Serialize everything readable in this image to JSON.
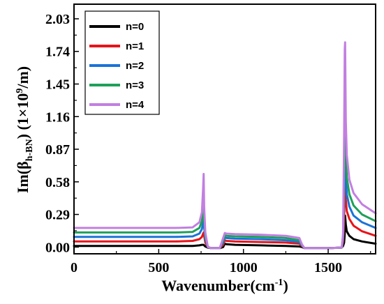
{
  "chart_data": {
    "type": "line",
    "xlabel": "Wavenumber(cm",
    "xlabel_sup": "-1",
    "xlabel_end": ")",
    "ylabel": {
      "prefix": "Im(β",
      "sub": "h-BN",
      "middle": ") (1×10",
      "sup": "9",
      "suffix": "/m)"
    },
    "xlim": [
      0,
      1780
    ],
    "ylim": [
      -0.06,
      2.16
    ],
    "x_ticks": [
      0,
      500,
      1000,
      1500
    ],
    "x_tick_labels": [
      "0",
      "500",
      "1000",
      "1500"
    ],
    "y_ticks": [
      0.0,
      0.29,
      0.58,
      0.87,
      1.16,
      1.45,
      1.74,
      2.03
    ],
    "y_tick_labels": [
      "0.00",
      "0.29",
      "0.58",
      "0.87",
      "1.16",
      "1.45",
      "1.74",
      "2.03"
    ],
    "grid": false,
    "legend_position": "top-left",
    "series": [
      {
        "name": "n=0",
        "color": "#000000",
        "x": [
          0,
          300,
          600,
          700,
          740,
          755,
          762,
          765,
          768,
          775,
          790,
          810,
          830,
          860,
          880,
          890,
          900,
          950,
          1100,
          1250,
          1330,
          1345,
          1360,
          1400,
          1500,
          1580,
          1588,
          1594,
          1598,
          1600,
          1604,
          1610,
          1625,
          1650,
          1700,
          1780
        ],
        "y": [
          0.01,
          0.01,
          0.01,
          0.01,
          0.015,
          0.02,
          0.02,
          0.02,
          0.015,
          0.005,
          -0.005,
          -0.01,
          -0.01,
          -0.01,
          0.0,
          0.03,
          0.025,
          0.02,
          0.015,
          0.01,
          0.005,
          0.0,
          -0.01,
          -0.01,
          -0.01,
          -0.005,
          0.01,
          0.04,
          0.12,
          0.28,
          0.2,
          0.14,
          0.1,
          0.07,
          0.05,
          0.03
        ]
      },
      {
        "name": "n=1",
        "color": "#e8131a",
        "x": [
          0,
          300,
          600,
          700,
          740,
          755,
          762,
          765,
          768,
          775,
          790,
          810,
          830,
          860,
          880,
          890,
          900,
          950,
          1100,
          1250,
          1330,
          1345,
          1360,
          1400,
          1500,
          1580,
          1588,
          1594,
          1598,
          1600,
          1604,
          1610,
          1625,
          1650,
          1700,
          1780
        ],
        "y": [
          0.05,
          0.05,
          0.05,
          0.055,
          0.07,
          0.09,
          0.12,
          0.13,
          0.1,
          0.04,
          0.0,
          -0.01,
          -0.01,
          -0.01,
          0.02,
          0.06,
          0.055,
          0.05,
          0.045,
          0.04,
          0.03,
          0.01,
          -0.01,
          -0.01,
          -0.01,
          -0.005,
          0.05,
          0.25,
          0.6,
          0.62,
          0.42,
          0.32,
          0.25,
          0.19,
          0.14,
          0.1
        ]
      },
      {
        "name": "n=2",
        "color": "#1a73d8",
        "x": [
          0,
          300,
          600,
          700,
          740,
          755,
          762,
          765,
          768,
          775,
          790,
          810,
          830,
          860,
          880,
          890,
          900,
          950,
          1100,
          1250,
          1330,
          1345,
          1360,
          1400,
          1500,
          1580,
          1588,
          1594,
          1598,
          1600,
          1604,
          1610,
          1625,
          1650,
          1700,
          1780
        ],
        "y": [
          0.09,
          0.09,
          0.09,
          0.095,
          0.12,
          0.16,
          0.22,
          0.25,
          0.18,
          0.07,
          0.0,
          -0.01,
          -0.01,
          -0.01,
          0.04,
          0.085,
          0.08,
          0.075,
          0.07,
          0.06,
          0.045,
          0.015,
          -0.01,
          -0.01,
          -0.01,
          -0.005,
          0.08,
          0.45,
          0.95,
          0.98,
          0.62,
          0.47,
          0.36,
          0.28,
          0.22,
          0.17
        ]
      },
      {
        "name": "n=3",
        "color": "#1ea05a",
        "x": [
          0,
          300,
          600,
          700,
          740,
          755,
          762,
          765,
          768,
          775,
          790,
          810,
          830,
          860,
          880,
          890,
          900,
          950,
          1100,
          1250,
          1330,
          1345,
          1360,
          1400,
          1500,
          1580,
          1588,
          1594,
          1598,
          1600,
          1604,
          1610,
          1625,
          1650,
          1700,
          1780
        ],
        "y": [
          0.13,
          0.13,
          0.13,
          0.135,
          0.17,
          0.23,
          0.34,
          0.4,
          0.26,
          0.1,
          0.0,
          -0.01,
          -0.01,
          -0.01,
          0.06,
          0.105,
          0.1,
          0.095,
          0.09,
          0.08,
          0.06,
          0.02,
          -0.01,
          -0.01,
          -0.01,
          -0.005,
          0.1,
          0.7,
          1.28,
          1.32,
          0.83,
          0.62,
          0.47,
          0.37,
          0.29,
          0.23
        ]
      },
      {
        "name": "n=4",
        "color": "#c27fe0",
        "x": [
          0,
          300,
          600,
          700,
          740,
          755,
          762,
          765,
          768,
          775,
          790,
          810,
          830,
          860,
          880,
          890,
          900,
          950,
          1100,
          1250,
          1330,
          1345,
          1360,
          1400,
          1500,
          1580,
          1588,
          1594,
          1598,
          1600,
          1604,
          1610,
          1625,
          1650,
          1700,
          1780
        ],
        "y": [
          0.17,
          0.17,
          0.17,
          0.175,
          0.22,
          0.31,
          0.52,
          0.65,
          0.36,
          0.13,
          0.0,
          -0.01,
          -0.01,
          -0.01,
          0.08,
          0.125,
          0.12,
          0.115,
          0.11,
          0.1,
          0.08,
          0.025,
          -0.01,
          -0.01,
          -0.01,
          -0.005,
          0.12,
          1.0,
          1.76,
          1.82,
          1.12,
          0.82,
          0.6,
          0.48,
          0.38,
          0.3
        ]
      }
    ]
  }
}
